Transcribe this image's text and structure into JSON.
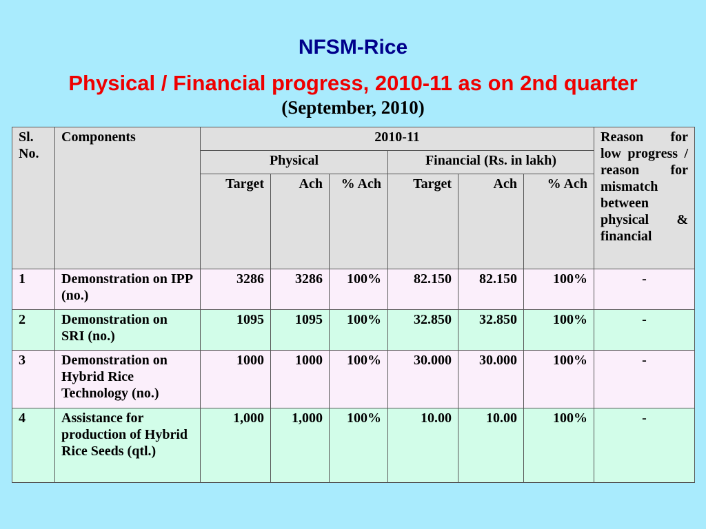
{
  "title": "NFSM-Rice",
  "subtitle": "Physical / Financial progress, 2010-11 as on 2nd quarter",
  "subtitle_paren": "(September, 2010)",
  "header": {
    "sl_no": "Sl. No.",
    "components": "Components",
    "year": "2010-11",
    "physical": "Physical",
    "financial": "Financial (Rs. in lakh)",
    "reason": "Reason for low progress / reason for mismatch between physical & financial",
    "phys_target": "Target",
    "phys_ach": "Ach",
    "phys_pct": "% Ach",
    "fin_target": "Target",
    "fin_ach": "Ach",
    "fin_pct": "% Ach"
  },
  "rows": [
    {
      "sl": "1",
      "component": "Demonstration on IPP (no.)",
      "phys_target": "3286",
      "phys_ach": "3286",
      "phys_pct": "100%",
      "fin_target": "82.150",
      "fin_ach": "82.150",
      "fin_pct": "100%",
      "reason": "-"
    },
    {
      "sl": "2",
      "component": "Demonstration on SRI (no.)",
      "phys_target": "1095",
      "phys_ach": "1095",
      "phys_pct": "100%",
      "fin_target": "32.850",
      "fin_ach": "32.850",
      "fin_pct": "100%",
      "reason": "-"
    },
    {
      "sl": "3",
      "component": "Demonstration on Hybrid Rice Technology (no.)",
      "phys_target": "1000",
      "phys_ach": "1000",
      "phys_pct": "100%",
      "fin_target": "30.000",
      "fin_ach": "30.000",
      "fin_pct": "100%",
      "reason": "-"
    },
    {
      "sl": "4",
      "component": "Assistance for production of Hybrid Rice Seeds (qtl.)",
      "phys_target": "1,000",
      "phys_ach": "1,000",
      "phys_pct": "100%",
      "fin_target": "10.00",
      "fin_ach": "10.00",
      "fin_pct": "100%",
      "reason": "-"
    }
  ]
}
